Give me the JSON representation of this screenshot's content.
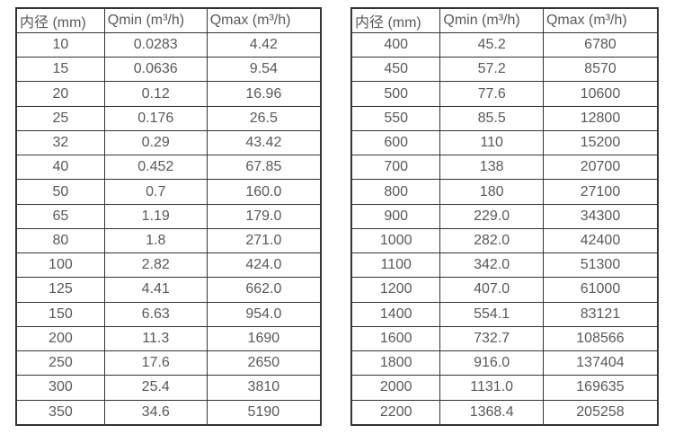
{
  "page": {
    "background_color": "#ffffff",
    "border_color": "#333333",
    "text_color": "#58595b"
  },
  "tables": [
    {
      "name": "flow-spec-table-small-diameters",
      "headers": [
        "内径 (mm)",
        "Qmin (m³/h)",
        "Qmax (m³/h)"
      ],
      "rows": [
        [
          "10",
          "0.0283",
          "4.42"
        ],
        [
          "15",
          "0.0636",
          "9.54"
        ],
        [
          "20",
          "0.12",
          "16.96"
        ],
        [
          "25",
          "0.176",
          "26.5"
        ],
        [
          "32",
          "0.29",
          "43.42"
        ],
        [
          "40",
          "0.452",
          "67.85"
        ],
        [
          "50",
          "0.7",
          "160.0"
        ],
        [
          "65",
          "1.19",
          "179.0"
        ],
        [
          "80",
          "1.8",
          "271.0"
        ],
        [
          "100",
          "2.82",
          "424.0"
        ],
        [
          "125",
          "4.41",
          "662.0"
        ],
        [
          "150",
          "6.63",
          "954.0"
        ],
        [
          "200",
          "11.3",
          "1690"
        ],
        [
          "250",
          "17.6",
          "2650"
        ],
        [
          "300",
          "25.4",
          "3810"
        ],
        [
          "350",
          "34.6",
          "5190"
        ]
      ]
    },
    {
      "name": "flow-spec-table-large-diameters",
      "headers": [
        "内径 (mm)",
        "Qmin (m³/h)",
        "Qmax (m³/h)"
      ],
      "rows": [
        [
          "400",
          "45.2",
          "6780"
        ],
        [
          "450",
          "57.2",
          "8570"
        ],
        [
          "500",
          "77.6",
          "10600"
        ],
        [
          "550",
          "85.5",
          "12800"
        ],
        [
          "600",
          "110",
          "15200"
        ],
        [
          "700",
          "138",
          "20700"
        ],
        [
          "800",
          "180",
          "27100"
        ],
        [
          "900",
          "229.0",
          "34300"
        ],
        [
          "1000",
          "282.0",
          "42400"
        ],
        [
          "1100",
          "342.0",
          "51300"
        ],
        [
          "1200",
          "407.0",
          "61000"
        ],
        [
          "1400",
          "554.1",
          "83121"
        ],
        [
          "1600",
          "732.7",
          "108566"
        ],
        [
          "1800",
          "916.0",
          "137404"
        ],
        [
          "2000",
          "1131.0",
          "169635"
        ],
        [
          "2200",
          "1368.4",
          "205258"
        ]
      ]
    }
  ]
}
